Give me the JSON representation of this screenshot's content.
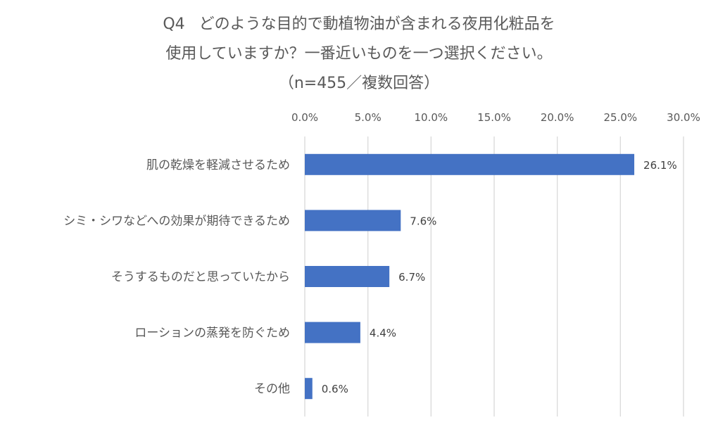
{
  "title": {
    "prefix": "Q4",
    "line1": "どのような目的で動植物油が含まれる夜用化粧品を",
    "line2": "使用していますか？一番近いものを一つ選択ください。",
    "line3": "（n=455／複数回答）"
  },
  "chart_data": {
    "type": "bar",
    "orientation": "horizontal",
    "categories": [
      "肌の乾燥を軽減させるため",
      "シミ・シワなどへの効果が期待できるため",
      "そうするものだと思っていたから",
      "ローションの蒸発を防ぐため",
      "その他"
    ],
    "values": [
      26.1,
      7.6,
      6.7,
      4.4,
      0.6
    ],
    "data_labels": [
      "26.1%",
      "7.6%",
      "6.7%",
      "4.4%",
      "0.6%"
    ],
    "xlim": [
      0,
      30
    ],
    "ticks": [
      "0.0%",
      "5.0%",
      "10.0%",
      "15.0%",
      "20.0%",
      "25.0%",
      "30.0%"
    ],
    "grid": true,
    "axis_position": "top",
    "bar_color": "#4472C4",
    "grid_color": "#D9D9D9"
  }
}
